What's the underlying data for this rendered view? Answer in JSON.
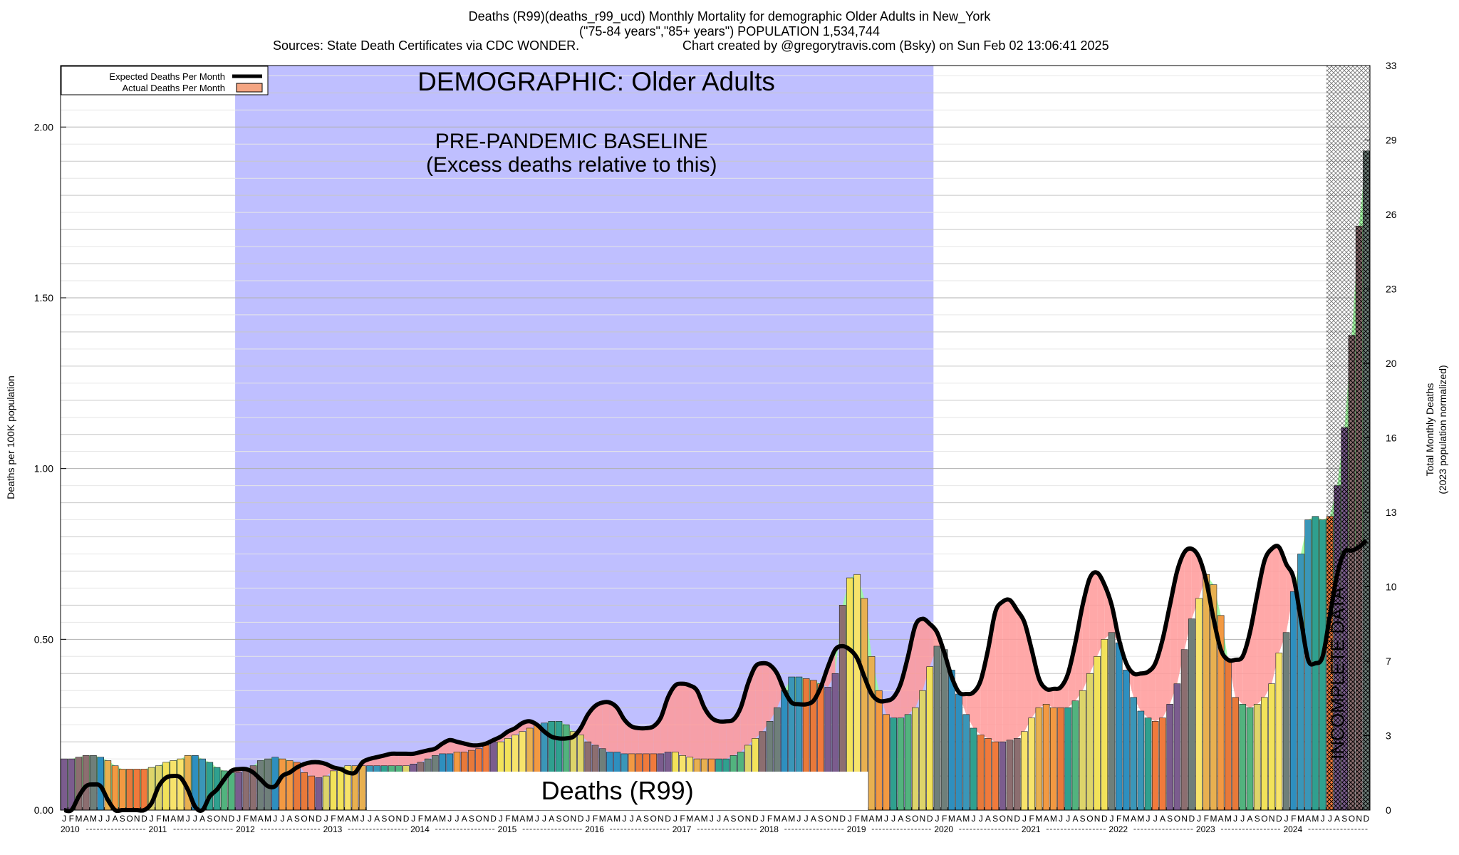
{
  "header": {
    "title_line1": "Deaths (R99)(deaths_r99_ucd) Monthly Mortality for demographic Older Adults in New_York",
    "title_line2": "(\"75-84 years\",\"85+ years\") POPULATION 1,534,744",
    "sources": "Sources: State Death Certificates via CDC WONDER.",
    "credit": "Chart created by @gregorytravis.com (Bsky) on Sun Feb 02 13:06:41 2025"
  },
  "annotations": {
    "demographic": "DEMOGRAPHIC: Older Adults",
    "baseline_line1": "PRE-PANDEMIC BASELINE",
    "baseline_line2": "(Excess deaths relative to this)",
    "series_label": "Deaths (R99)",
    "incomplete": "INCOMPLETE DATA"
  },
  "legend": {
    "expected": "Expected Deaths Per Month",
    "actual": "Actual Deaths Per Month"
  },
  "colors": {
    "baseline_shade": "#bfbfff",
    "excess_fill": "#99ff99",
    "deficit_fill": "#ff9999",
    "expected_line": "#000000",
    "palette": [
      "#7b5c8e",
      "#8c6e70",
      "#6f7f7a",
      "#2e8fbf",
      "#3a96b8",
      "#2fa08f",
      "#52b37e",
      "#ddd46a",
      "#f2e25a",
      "#f7e36b",
      "#e8b050",
      "#f29942",
      "#e8793a",
      "#f07a3c"
    ]
  },
  "chart_data": {
    "type": "bar",
    "x_start": "2010-01",
    "x_end": "2024-12",
    "month_labels": [
      "J",
      "F",
      "M",
      "A",
      "M",
      "J",
      "J",
      "A",
      "S",
      "O",
      "N",
      "D"
    ],
    "years": [
      "2010",
      "2011",
      "2012",
      "2013",
      "2014",
      "2015",
      "2016",
      "2017",
      "2018",
      "2019",
      "2020",
      "2021",
      "2022",
      "2023",
      "2024"
    ],
    "ylabel": "Deaths per 100K population",
    "y2label_line1": "Total Monthly Deaths",
    "y2label_line2": "(2023 population normalized)",
    "ylim": [
      0,
      2.18
    ],
    "yticks": [
      "0.00",
      "0.50",
      "1.00",
      "1.50",
      "2.00"
    ],
    "y2ticks": [
      "0",
      "3",
      "7",
      "10",
      "13",
      "16",
      "20",
      "23",
      "26",
      "29",
      "33"
    ],
    "baseline_period": [
      "2012-01",
      "2019-12"
    ],
    "incomplete_from": "2024-07",
    "series": [
      {
        "name": "Actual Deaths Per Month",
        "values": [
          0.15,
          0.15,
          0.155,
          0.16,
          0.16,
          0.155,
          0.145,
          0.13,
          0.12,
          0.12,
          0.12,
          0.12,
          0.125,
          0.13,
          0.14,
          0.145,
          0.15,
          0.16,
          0.16,
          0.15,
          0.14,
          0.125,
          0.115,
          0.11,
          0.11,
          0.12,
          0.13,
          0.145,
          0.15,
          0.155,
          0.15,
          0.145,
          0.14,
          0.11,
          0.1,
          0.095,
          0.1,
          0.115,
          0.125,
          0.13,
          0.13,
          0.13,
          0.13,
          0.13,
          0.13,
          0.13,
          0.13,
          0.13,
          0.135,
          0.14,
          0.15,
          0.16,
          0.165,
          0.165,
          0.17,
          0.17,
          0.175,
          0.18,
          0.19,
          0.2,
          0.2,
          0.21,
          0.22,
          0.23,
          0.24,
          0.25,
          0.255,
          0.26,
          0.26,
          0.25,
          0.23,
          0.22,
          0.2,
          0.19,
          0.18,
          0.17,
          0.17,
          0.165,
          0.165,
          0.165,
          0.165,
          0.165,
          0.165,
          0.17,
          0.17,
          0.16,
          0.155,
          0.15,
          0.15,
          0.15,
          0.15,
          0.15,
          0.16,
          0.17,
          0.19,
          0.21,
          0.23,
          0.26,
          0.3,
          0.35,
          0.39,
          0.39,
          0.385,
          0.38,
          0.37,
          0.36,
          0.4,
          0.6,
          0.68,
          0.69,
          0.62,
          0.45,
          0.35,
          0.28,
          0.27,
          0.27,
          0.28,
          0.3,
          0.35,
          0.42,
          0.48,
          0.47,
          0.41,
          0.34,
          0.28,
          0.24,
          0.22,
          0.21,
          0.2,
          0.2,
          0.205,
          0.21,
          0.23,
          0.27,
          0.3,
          0.31,
          0.3,
          0.3,
          0.3,
          0.32,
          0.35,
          0.4,
          0.45,
          0.5,
          0.52,
          0.49,
          0.41,
          0.33,
          0.29,
          0.27,
          0.26,
          0.27,
          0.31,
          0.37,
          0.47,
          0.56,
          0.62,
          0.69,
          0.66,
          0.57,
          0.44,
          0.33,
          0.31,
          0.3,
          0.31,
          0.33,
          0.37,
          0.46,
          0.52,
          0.64,
          0.75,
          0.85,
          0.86,
          0.85,
          0.86,
          0.95,
          1.12,
          1.39,
          1.71,
          1.93
        ]
      },
      {
        "name": "Expected Deaths Per Month",
        "values": [
          0.0,
          0.0,
          0.04,
          0.07,
          0.075,
          0.07,
          0.03,
          0.0,
          0.0,
          0.0,
          0.0,
          0.0,
          0.02,
          0.07,
          0.095,
          0.1,
          0.095,
          0.06,
          0.01,
          0.0,
          0.04,
          0.06,
          0.09,
          0.115,
          0.12,
          0.12,
          0.11,
          0.09,
          0.07,
          0.07,
          0.1,
          0.11,
          0.125,
          0.135,
          0.14,
          0.14,
          0.135,
          0.125,
          0.12,
          0.11,
          0.11,
          0.14,
          0.15,
          0.155,
          0.16,
          0.165,
          0.165,
          0.165,
          0.165,
          0.17,
          0.175,
          0.18,
          0.195,
          0.205,
          0.2,
          0.195,
          0.19,
          0.19,
          0.195,
          0.205,
          0.215,
          0.23,
          0.24,
          0.255,
          0.26,
          0.25,
          0.23,
          0.215,
          0.21,
          0.21,
          0.215,
          0.24,
          0.28,
          0.305,
          0.315,
          0.315,
          0.3,
          0.265,
          0.245,
          0.24,
          0.24,
          0.245,
          0.27,
          0.33,
          0.365,
          0.37,
          0.365,
          0.35,
          0.3,
          0.27,
          0.26,
          0.26,
          0.265,
          0.3,
          0.37,
          0.42,
          0.43,
          0.425,
          0.4,
          0.35,
          0.315,
          0.31,
          0.31,
          0.32,
          0.36,
          0.42,
          0.47,
          0.48,
          0.47,
          0.445,
          0.39,
          0.34,
          0.32,
          0.32,
          0.33,
          0.37,
          0.45,
          0.54,
          0.56,
          0.545,
          0.52,
          0.46,
          0.39,
          0.345,
          0.34,
          0.345,
          0.38,
          0.47,
          0.58,
          0.61,
          0.615,
          0.585,
          0.55,
          0.47,
          0.385,
          0.355,
          0.355,
          0.36,
          0.4,
          0.49,
          0.6,
          0.68,
          0.695,
          0.66,
          0.6,
          0.5,
          0.43,
          0.4,
          0.4,
          0.405,
          0.43,
          0.5,
          0.6,
          0.7,
          0.755,
          0.765,
          0.74,
          0.67,
          0.56,
          0.47,
          0.44,
          0.44,
          0.45,
          0.52,
          0.63,
          0.73,
          0.765,
          0.77,
          0.72,
          0.68,
          0.56,
          0.44,
          0.43,
          0.45,
          0.57,
          0.69,
          0.755,
          0.76,
          0.77,
          0.79
        ]
      }
    ]
  }
}
